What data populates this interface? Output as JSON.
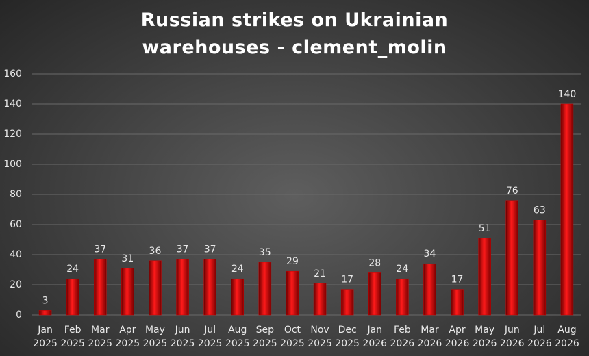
{
  "chart_data": {
    "type": "bar",
    "title": "Russian strikes on Ukrainian warehouses - clement_molin",
    "categories": [
      "Jan 2025",
      "Feb 2025",
      "Mar 2025",
      "Apr 2025",
      "May 2025",
      "Jun 2025",
      "Jul 2025",
      "Aug 2025",
      "Sep 2025",
      "Oct 2025",
      "Nov 2025",
      "Dec 2025",
      "Jan 2026",
      "Feb 2026",
      "Mar 2026",
      "Apr 2026",
      "May 2026",
      "Jun 2026",
      "Jul 2026",
      "Aug 2026"
    ],
    "values": [
      3,
      24,
      37,
      31,
      36,
      37,
      37,
      24,
      35,
      29,
      21,
      17,
      28,
      24,
      34,
      17,
      51,
      76,
      63,
      140
    ],
    "color": "#d00000",
    "ylim": [
      0,
      160
    ],
    "yticks": [
      0,
      20,
      40,
      60,
      80,
      100,
      120,
      140,
      160
    ],
    "grid": true
  }
}
